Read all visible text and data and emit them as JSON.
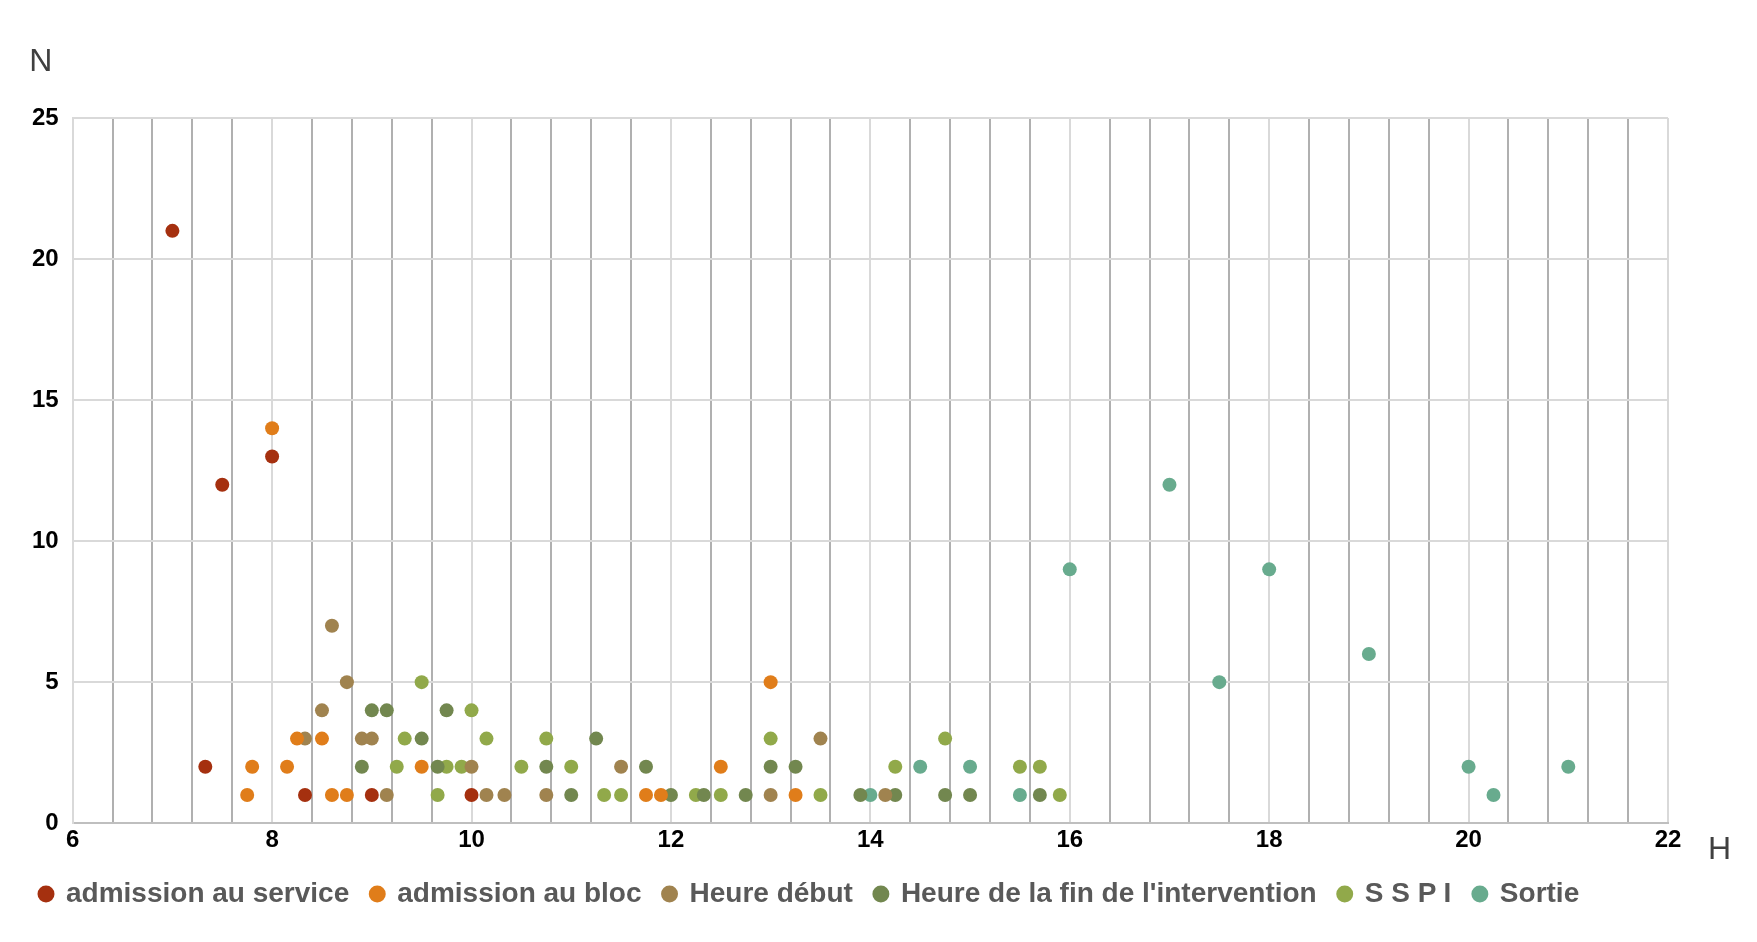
{
  "chart_data": {
    "type": "scatter",
    "xlabel": "H",
    "ylabel": "N",
    "xlim": [
      6,
      22
    ],
    "ylim": [
      0,
      25
    ],
    "xticks": [
      6,
      {
        "value": 6.4,
        "label": null
      },
      {
        "value": 6.8,
        "label": null
      },
      {
        "value": 7.2,
        "label": null
      },
      {
        "value": 7.6,
        "label": null
      },
      8,
      {
        "value": 8.4,
        "label": null
      },
      {
        "value": 8.8,
        "label": null
      },
      {
        "value": 9.2,
        "label": null
      },
      {
        "value": 9.6,
        "label": null
      },
      10,
      {
        "value": 10.4,
        "label": null
      },
      {
        "value": 10.8,
        "label": null
      },
      {
        "value": 11.2,
        "label": null
      },
      {
        "value": 11.6,
        "label": null
      },
      12,
      {
        "value": 12.4,
        "label": null
      },
      {
        "value": 12.8,
        "label": null
      },
      {
        "value": 13.2,
        "label": null
      },
      {
        "value": 13.6,
        "label": null
      },
      14,
      {
        "value": 14.4,
        "label": null
      },
      {
        "value": 14.8,
        "label": null
      },
      {
        "value": 15.2,
        "label": null
      },
      {
        "value": 15.6,
        "label": null
      },
      16,
      {
        "value": 16.4,
        "label": null
      },
      {
        "value": 16.8,
        "label": null
      },
      {
        "value": 17.2,
        "label": null
      },
      {
        "value": 17.6,
        "label": null
      },
      18,
      {
        "value": 18.4,
        "label": null
      },
      {
        "value": 18.8,
        "label": null
      },
      {
        "value": 19.2,
        "label": null
      },
      {
        "value": 19.6,
        "label": null
      },
      20,
      {
        "value": 20.4,
        "label": null
      },
      {
        "value": 20.8,
        "label": null
      },
      {
        "value": 21.2,
        "label": null
      },
      {
        "value": 21.6,
        "label": null
      },
      22
    ],
    "yticks": [
      0,
      5,
      10,
      15,
      20,
      25
    ],
    "grid": true,
    "legend": "bottom",
    "marker": "circle",
    "series": [
      {
        "name": "admission au service",
        "color": "#a5300f",
        "x": [
          7.0,
          7.33,
          7.5,
          8.0,
          8.33,
          9.0,
          10.0
        ],
        "values": [
          21,
          2,
          12,
          13,
          1,
          1,
          1
        ]
      },
      {
        "name": "admission au bloc",
        "color": "#e07d1a",
        "x": [
          7.75,
          7.8,
          8.0,
          8.15,
          8.25,
          8.5,
          8.6,
          8.75,
          9.5,
          11.75,
          11.9,
          12.5,
          13.0,
          13.25
        ],
        "values": [
          1,
          2,
          14,
          2,
          3,
          3,
          1,
          1,
          2,
          1,
          1,
          2,
          5,
          1
        ]
      },
      {
        "name": "Heure début",
        "color": "#a0834f",
        "x": [
          8.33,
          8.5,
          8.6,
          8.75,
          8.9,
          9.0,
          9.15,
          10.0,
          10.15,
          10.33,
          10.75,
          11.5,
          13.0,
          13.5,
          14.15
        ],
        "values": [
          3,
          4,
          7,
          5,
          3,
          3,
          1,
          2,
          1,
          1,
          1,
          2,
          1,
          3,
          1
        ]
      },
      {
        "name": "Heure de la fin de l'intervention",
        "color": "#72874f",
        "x": [
          8.9,
          9.0,
          9.15,
          9.5,
          9.66,
          9.75,
          10.75,
          11.0,
          11.25,
          11.75,
          12.0,
          12.33,
          12.75,
          13.0,
          13.25,
          13.9,
          14.25,
          14.75,
          15.0,
          15.7
        ],
        "values": [
          2,
          4,
          4,
          3,
          2,
          4,
          2,
          1,
          3,
          2,
          1,
          1,
          1,
          2,
          2,
          1,
          1,
          1,
          1,
          1
        ]
      },
      {
        "name": "S S P I",
        "color": "#91a94a",
        "x": [
          9.25,
          9.33,
          9.5,
          9.66,
          9.75,
          9.9,
          10.0,
          10.15,
          10.5,
          10.75,
          11.0,
          11.33,
          11.5,
          12.25,
          12.5,
          13.0,
          13.5,
          14.25,
          14.75,
          15.5,
          15.7,
          15.9
        ],
        "values": [
          2,
          3,
          5,
          1,
          2,
          2,
          4,
          3,
          2,
          3,
          2,
          1,
          1,
          1,
          1,
          3,
          1,
          2,
          3,
          2,
          2,
          1
        ]
      },
      {
        "name": "Sortie",
        "color": "#68ab8e",
        "x": [
          14.0,
          14.5,
          15.0,
          15.5,
          16.0,
          17.0,
          17.5,
          18.0,
          19.0,
          20.0,
          20.25,
          21.0
        ],
        "values": [
          1,
          2,
          2,
          1,
          9,
          12,
          5,
          9,
          6,
          2,
          1,
          2
        ]
      }
    ]
  }
}
